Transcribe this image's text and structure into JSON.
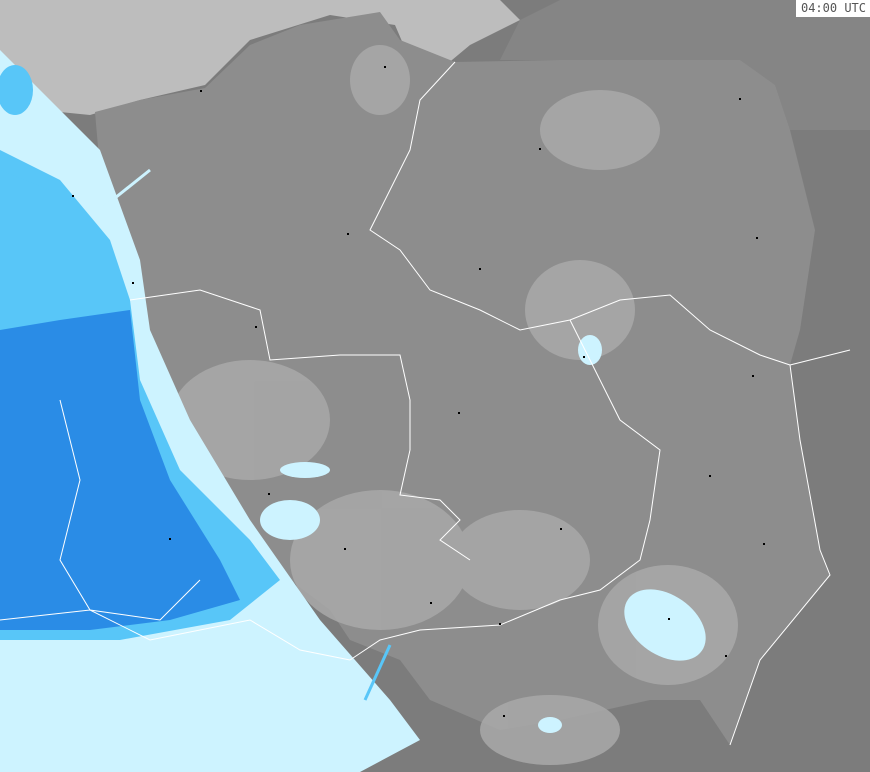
{
  "timestamp": "04:00 UTC",
  "colors": {
    "outside": "#7c7c7c",
    "country": "#8d8d8d",
    "sea": "#bdbdbd",
    "clutter": "#a9a9a9",
    "precip_light": "#cdf3ff",
    "precip_mid": "#58c6f8",
    "precip_heavy": "#2a8ce6",
    "border": "#ffffff",
    "city": "#000000"
  }
}
